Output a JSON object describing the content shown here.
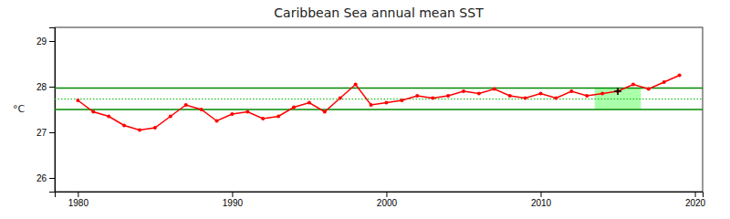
{
  "chart_data": {
    "type": "line",
    "title": "Caribbean Sea annual mean SST",
    "ylabel": "°C",
    "x": [
      1980,
      1981,
      1982,
      1983,
      1984,
      1985,
      1986,
      1987,
      1988,
      1989,
      1990,
      1991,
      1992,
      1993,
      1994,
      1995,
      1996,
      1997,
      1998,
      1999,
      2000,
      2001,
      2002,
      2003,
      2004,
      2005,
      2006,
      2007,
      2008,
      2009,
      2010,
      2011,
      2012,
      2013,
      2014,
      2015,
      2016,
      2017,
      2018,
      2019
    ],
    "values": [
      27.7,
      27.45,
      27.35,
      27.15,
      27.05,
      27.1,
      27.35,
      27.6,
      27.5,
      27.25,
      27.4,
      27.45,
      27.3,
      27.35,
      27.55,
      27.65,
      27.45,
      27.75,
      28.05,
      27.6,
      27.65,
      27.7,
      27.8,
      27.75,
      27.8,
      27.9,
      27.85,
      27.95,
      27.8,
      27.75,
      27.85,
      27.75,
      27.9,
      27.8,
      27.85,
      27.9,
      28.05,
      27.95,
      28.1,
      28.25
    ],
    "color": "#ff0000",
    "marker": "circle",
    "xlim": [
      1978.5,
      2020.5
    ],
    "xticks": [
      1980,
      1990,
      2000,
      2010,
      2020
    ],
    "ylim": [
      25.7,
      29.3
    ],
    "yticks": [
      26,
      27,
      28,
      29
    ],
    "grid": false,
    "reference_lines": [
      {
        "value": 27.97,
        "color": "#008800",
        "line_style": "solid"
      },
      {
        "value": 27.5,
        "color": "#008800",
        "line_style": "solid"
      },
      {
        "value": 27.73,
        "color": "#00bb00",
        "line_style": "dotted"
      }
    ],
    "shaded_region": {
      "x": [
        2013.5,
        2016.5
      ],
      "y": [
        27.5,
        27.97
      ],
      "color": "#aaffaa"
    },
    "highlight_point": {
      "x": 2015.0,
      "y": 27.9,
      "color": "#000000",
      "marker": "plus"
    }
  }
}
